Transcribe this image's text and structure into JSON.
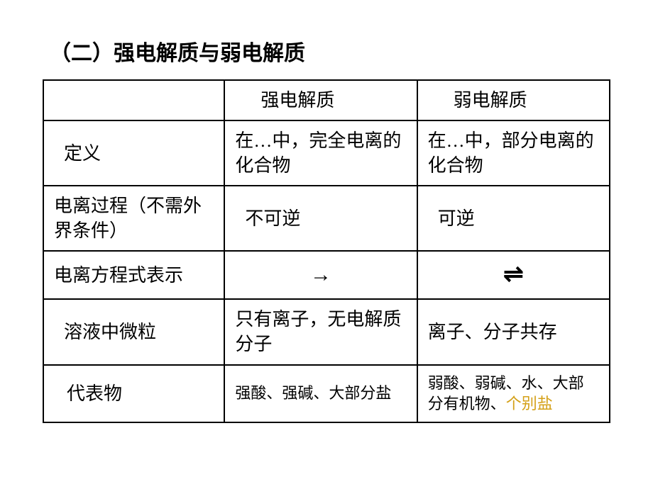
{
  "title": "（二）强电解质与弱电解质",
  "table": {
    "headers": {
      "blank": "",
      "strong": "强电解质",
      "weak": "弱电解质"
    },
    "rows": {
      "definition": {
        "label": "定义",
        "strong": "在…中，完全电离的化合物",
        "weak": "在…中，部分电离的化合物"
      },
      "process": {
        "label": "电离过程（不需外界条件）",
        "strong": "不可逆",
        "weak": "可逆"
      },
      "equation": {
        "label": "电离方程式表示",
        "strong": "→",
        "weak": "⇌"
      },
      "particles": {
        "label": "溶液中微粒",
        "strong": "只有离子，无电解质分子",
        "weak": "离子、分子共存"
      },
      "representatives": {
        "label": "代表物",
        "strong": "强酸、强碱、大部分盐",
        "weak_prefix": "弱酸、弱碱、水、大部分有机物、",
        "weak_highlight": "个别盐"
      }
    }
  },
  "colors": {
    "text": "#000000",
    "border": "#000000",
    "background": "#ffffff",
    "highlight": "#d4a017"
  }
}
